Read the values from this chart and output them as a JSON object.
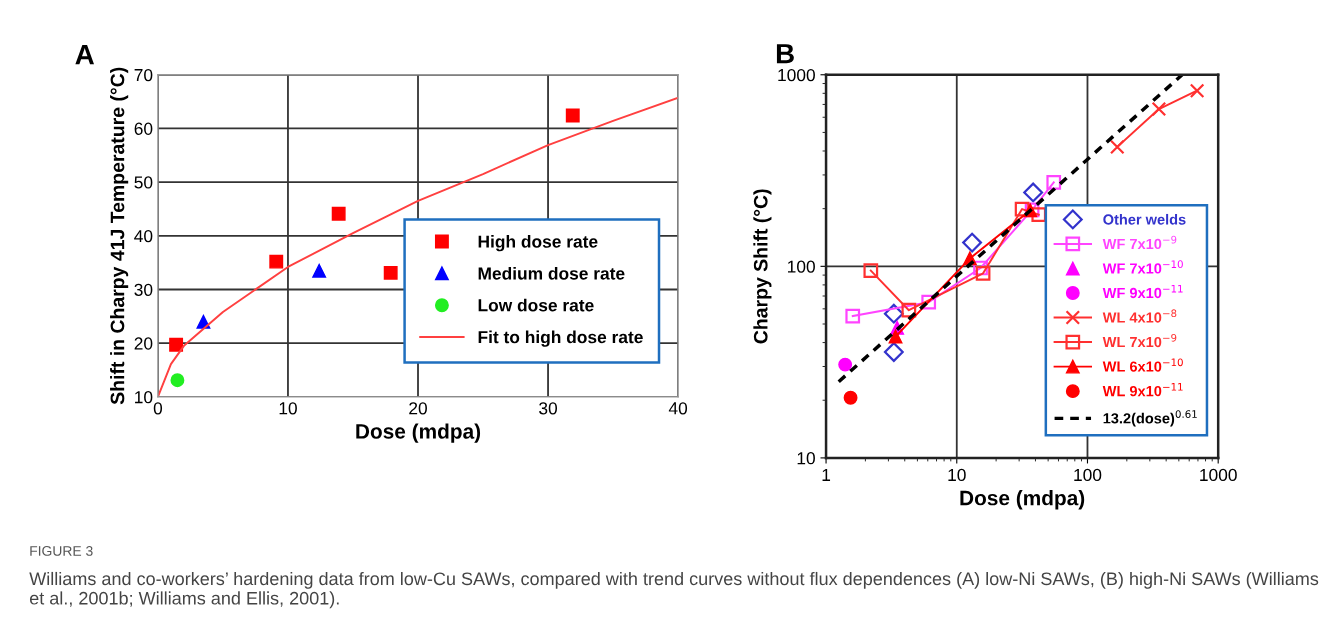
{
  "chart_data": [
    {
      "type": "scatter",
      "title": "A",
      "xlabel": "Dose (mdpa)",
      "ylabel": "Shift in Charpy 41J Temperature (°C)",
      "xlim": [
        0,
        40
      ],
      "ylim": [
        10,
        70
      ],
      "xticks": [
        0,
        10,
        20,
        30,
        40
      ],
      "yticks": [
        10,
        20,
        30,
        40,
        50,
        60,
        70
      ],
      "grid": true,
      "legend": "lower right",
      "annotations": [
        "FIGURE 3",
        "Williams and co-workers’ hardening data from low-Cu SAWs, compared with trend curves without flux dependences (A) low-Ni SAWs, (B) high-Ni SAWs (Williams et al., 2001b; Williams and Ellis, 2001)."
      ],
      "series": [
        {
          "name": "High dose rate",
          "color": "#ff0000",
          "marker": "square",
          "x": [
            1.4,
            9.1,
            13.9,
            17.9,
            31.9
          ],
          "values": [
            19.7,
            35.2,
            44.1,
            33.1,
            62.4
          ]
        },
        {
          "name": "Medium dose rate",
          "color": "#0000ff",
          "marker": "triangle",
          "x": [
            3.5,
            12.4
          ],
          "values": [
            24.0,
            33.5
          ]
        },
        {
          "name": "Low dose rate",
          "color": "#22ee22",
          "marker": "circle",
          "x": [
            1.5
          ],
          "values": [
            13.1
          ]
        },
        {
          "name": "Fit to high dose rate",
          "type": "line",
          "color": "#ff4040",
          "marker": "none",
          "x": [
            0,
            1,
            2,
            5,
            10,
            15,
            20,
            25,
            30,
            35,
            40
          ],
          "values": [
            10,
            16.1,
            19.5,
            25.8,
            34.2,
            40.5,
            46.5,
            51.5,
            56.9,
            61.4,
            65.7
          ]
        }
      ]
    },
    {
      "type": "scatter",
      "title": "B",
      "xlabel": "Dose (mdpa)",
      "ylabel": "Charpy Shift (°C)",
      "log": "xy",
      "xlim": [
        1,
        1000
      ],
      "ylim": [
        10,
        1000
      ],
      "xticks": [
        1,
        10,
        100,
        1000
      ],
      "yticks": [
        10,
        100,
        1000
      ],
      "grid": true,
      "legend": "lower right",
      "series": [
        {
          "name": "Other welds",
          "color": "#3333cc",
          "marker": "diamond",
          "x": [
            3.3,
            3.3,
            13.1,
            38.4
          ],
          "values": [
            56.6,
            35.7,
            133,
            243
          ]
        },
        {
          "name": "WF 7x10$^{−9}$",
          "type": "line",
          "color": "#ff44ff",
          "marker": "square",
          "x": [
            1.6,
            6.1,
            15.2,
            37.7,
            55.2
          ],
          "values": [
            55,
            65,
            98,
            197,
            274
          ]
        },
        {
          "name": "WF 7x10$^{−10}$",
          "color": "#ff00ff",
          "marker": "triangle",
          "x": [
            3.5
          ],
          "values": [
            47.7
          ]
        },
        {
          "name": "WF 9x10$^{−11}$",
          "color": "#ff00ff",
          "marker": "circle",
          "x": [
            1.4
          ],
          "values": [
            30.7
          ]
        },
        {
          "name": "WL 4x10$^{−8}$",
          "type": "line",
          "color": "#ff3030",
          "marker": "cross",
          "x": [
            169,
            352,
            690
          ],
          "values": [
            420,
            662,
            826
          ]
        },
        {
          "name": "WL 7x10$^{−9}$",
          "type": "line",
          "color": "#ff3030",
          "marker": "square",
          "x": [
            2.2,
            4.3,
            15.9,
            31.6,
            42.4
          ],
          "values": [
            95,
            59,
            92,
            199,
            186
          ]
        },
        {
          "name": "WL 6x10$^{−10}$",
          "type": "line",
          "color": "#ff0000",
          "marker": "triangle",
          "x": [
            3.4,
            12.6,
            36.5
          ],
          "values": [
            43,
            110,
            196
          ]
        },
        {
          "name": "WL 9x10$^{−11}$",
          "color": "#ff0000",
          "marker": "circle",
          "x": [
            1.54
          ],
          "values": [
            20.6
          ]
        },
        {
          "name": "13.2(dose)$^{0.61}$",
          "type": "line",
          "color": "#000000",
          "marker": "none",
          "line_style": "dashed",
          "x": [
            1.25,
            530
          ],
          "values": [
            25,
            1000
          ]
        }
      ]
    }
  ]
}
